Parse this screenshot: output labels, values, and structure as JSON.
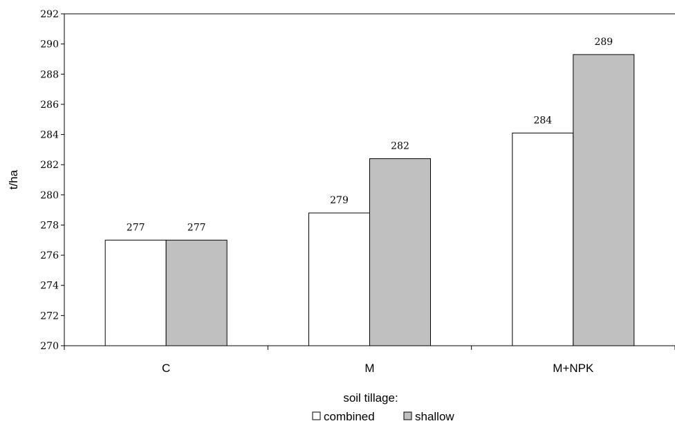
{
  "chart_data": {
    "type": "bar",
    "categories": [
      "C",
      "M",
      "M+NPK"
    ],
    "series": [
      {
        "name": "combined",
        "values": [
          277,
          278.8,
          284.1
        ],
        "labels": [
          "277",
          "279",
          "284"
        ],
        "color": "#ffffff"
      },
      {
        "name": "shallow",
        "values": [
          277,
          282.4,
          289.3
        ],
        "labels": [
          "277",
          "282",
          "289"
        ],
        "color": "#c0c0c0"
      }
    ],
    "yticks": [
      "270",
      "272",
      "274",
      "276",
      "278",
      "280",
      "282",
      "284",
      "286",
      "288",
      "290",
      "292"
    ],
    "ylim": [
      270,
      292
    ],
    "xlabel": "",
    "ylabel": "t/ha",
    "legend_title": "soil tillage:",
    "legend_position": "bottom-center",
    "grid": false
  }
}
